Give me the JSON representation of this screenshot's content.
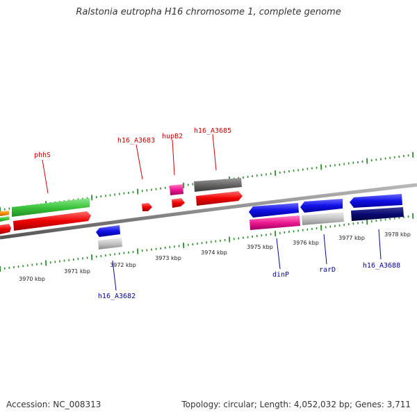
{
  "title": "Ralstonia eutropha H16 chromosome 1, complete genome",
  "footer": {
    "accession": "Accession: NC_008313",
    "stats": "Topology: circular; Length: 4,052,032 bp; Genes: 3,711"
  },
  "colors": {
    "backbone": "#8c8c8c",
    "tick": "#2e8b2e",
    "label_top": "#cc0000",
    "label_bottom": "#00009c"
  },
  "scale_labels": [
    "3970 kbp",
    "3971 kbp",
    "3972 kbp",
    "3973 kbp",
    "3974 kbp",
    "3975 kbp",
    "3976 kbp",
    "3977 kbp",
    "3978 kbp"
  ],
  "top_labels": [
    "phhS",
    "h16_A3683",
    "hupB2",
    "h16_A3685"
  ],
  "bottom_labels": [
    "h16_A3682",
    "dinP",
    "rarD",
    "h16_A3688"
  ]
}
